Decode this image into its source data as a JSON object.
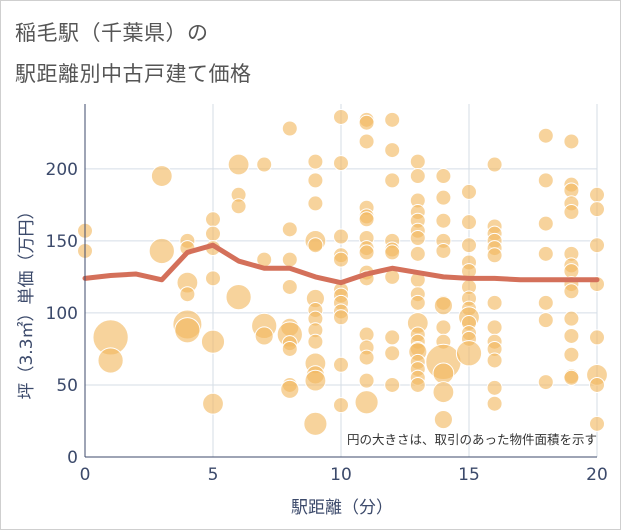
{
  "title_line_1": "稲毛駅（千葉県）の",
  "title_line_2": "駅距離別中古戸建て価格",
  "chart_data": {
    "type": "scatter",
    "xlabel": "駅距離（分）",
    "ylabel": "坪（3.3㎡）単価（万円）",
    "xlim": [
      0,
      20
    ],
    "ylim": [
      0,
      245
    ],
    "xticks": [
      0,
      5,
      10,
      15,
      20
    ],
    "yticks": [
      0,
      50,
      100,
      150,
      200
    ],
    "grid": true,
    "annotation": "円の大きさは、取引のあった物件面積を示す",
    "colors": {
      "bubble": "#f2b85f",
      "trend": "#d4705a",
      "grid": "#d5dde6"
    },
    "bubbles": [
      [
        0,
        157,
        1
      ],
      [
        0,
        143,
        1
      ],
      [
        1,
        83,
        6
      ],
      [
        1,
        67,
        3
      ],
      [
        3,
        195,
        2
      ],
      [
        3,
        143,
        3
      ],
      [
        4,
        150,
        1
      ],
      [
        4,
        145,
        1
      ],
      [
        4,
        121,
        2
      ],
      [
        4,
        113,
        1
      ],
      [
        4,
        92,
        4
      ],
      [
        4,
        88,
        3
      ],
      [
        5,
        165,
        1
      ],
      [
        5,
        155,
        1
      ],
      [
        5,
        145,
        1
      ],
      [
        5,
        124,
        1
      ],
      [
        5,
        80,
        2.5
      ],
      [
        5,
        37,
        2
      ],
      [
        6,
        203,
        2
      ],
      [
        6,
        182,
        1
      ],
      [
        6,
        174,
        1
      ],
      [
        6,
        111,
        3
      ],
      [
        7,
        203,
        1
      ],
      [
        7,
        137,
        1
      ],
      [
        7,
        91,
        3
      ],
      [
        7,
        84,
        1.5
      ],
      [
        8,
        228,
        1
      ],
      [
        8,
        158,
        1
      ],
      [
        8,
        137,
        1
      ],
      [
        8,
        118,
        1
      ],
      [
        8,
        90,
        1.5
      ],
      [
        8,
        85,
        3
      ],
      [
        8,
        79,
        1
      ],
      [
        8,
        75,
        1
      ],
      [
        8,
        50,
        1
      ],
      [
        8,
        47,
        1.5
      ],
      [
        9,
        205,
        1
      ],
      [
        9,
        192,
        1
      ],
      [
        9,
        176,
        1
      ],
      [
        9,
        150,
        2
      ],
      [
        9,
        147,
        1
      ],
      [
        9,
        110,
        1.5
      ],
      [
        9,
        102,
        1
      ],
      [
        9,
        96,
        1
      ],
      [
        9,
        88,
        1
      ],
      [
        9,
        80,
        1
      ],
      [
        9,
        65,
        2
      ],
      [
        9,
        57,
        1.5
      ],
      [
        9,
        53,
        2
      ],
      [
        9,
        23,
        2.5
      ],
      [
        10,
        236,
        1
      ],
      [
        10,
        204,
        1
      ],
      [
        10,
        153,
        1
      ],
      [
        10,
        140,
        1
      ],
      [
        10,
        137,
        1
      ],
      [
        10,
        116,
        1
      ],
      [
        10,
        112,
        1
      ],
      [
        10,
        107,
        1
      ],
      [
        10,
        101,
        1
      ],
      [
        10,
        97,
        1
      ],
      [
        10,
        64,
        1
      ],
      [
        10,
        36,
        1
      ],
      [
        11,
        234,
        1
      ],
      [
        11,
        232,
        1
      ],
      [
        11,
        219,
        1
      ],
      [
        11,
        173,
        1
      ],
      [
        11,
        167,
        1
      ],
      [
        11,
        165,
        1
      ],
      [
        11,
        152,
        1
      ],
      [
        11,
        145,
        1
      ],
      [
        11,
        142,
        1
      ],
      [
        11,
        128,
        1
      ],
      [
        11,
        124,
        1
      ],
      [
        11,
        85,
        1
      ],
      [
        11,
        76,
        1
      ],
      [
        11,
        69,
        1
      ],
      [
        11,
        53,
        1
      ],
      [
        11,
        38,
        2.5
      ],
      [
        12,
        234,
        1
      ],
      [
        12,
        213,
        1
      ],
      [
        12,
        192,
        1
      ],
      [
        12,
        150,
        1
      ],
      [
        12,
        144,
        1
      ],
      [
        12,
        142,
        1
      ],
      [
        12,
        125,
        1
      ],
      [
        12,
        83,
        1
      ],
      [
        12,
        72,
        1
      ],
      [
        12,
        50,
        1
      ],
      [
        13,
        205,
        1
      ],
      [
        13,
        195,
        1
      ],
      [
        13,
        178,
        1
      ],
      [
        13,
        170,
        1
      ],
      [
        13,
        164,
        1
      ],
      [
        13,
        157,
        1
      ],
      [
        13,
        152,
        1
      ],
      [
        13,
        141,
        1
      ],
      [
        13,
        123,
        1
      ],
      [
        13,
        113,
        1
      ],
      [
        13,
        107,
        1
      ],
      [
        13,
        93,
        2
      ],
      [
        13,
        85,
        1
      ],
      [
        13,
        80,
        1
      ],
      [
        13,
        75,
        1
      ],
      [
        13,
        73,
        1.5
      ],
      [
        13,
        66,
        1
      ],
      [
        13,
        61,
        1
      ],
      [
        13,
        55,
        1
      ],
      [
        13,
        50,
        1
      ],
      [
        14,
        195,
        1
      ],
      [
        14,
        180,
        1
      ],
      [
        14,
        164,
        1
      ],
      [
        14,
        150,
        1
      ],
      [
        14,
        143,
        1
      ],
      [
        14,
        107,
        1
      ],
      [
        14,
        105,
        1.5
      ],
      [
        14,
        90,
        1
      ],
      [
        14,
        80,
        1
      ],
      [
        14,
        66,
        6
      ],
      [
        14,
        58,
        2
      ],
      [
        14,
        45,
        2
      ],
      [
        14,
        26,
        1.5
      ],
      [
        15,
        184,
        1
      ],
      [
        15,
        163,
        1
      ],
      [
        15,
        147,
        1
      ],
      [
        15,
        135,
        1
      ],
      [
        15,
        129,
        1
      ],
      [
        15,
        118,
        1
      ],
      [
        15,
        110,
        1
      ],
      [
        15,
        103,
        1
      ],
      [
        15,
        97,
        2
      ],
      [
        15,
        93,
        1
      ],
      [
        15,
        86,
        1
      ],
      [
        15,
        82,
        1
      ],
      [
        15,
        72,
        3
      ],
      [
        16,
        203,
        1
      ],
      [
        16,
        160,
        1
      ],
      [
        16,
        155,
        1
      ],
      [
        16,
        150,
        1
      ],
      [
        16,
        145,
        1
      ],
      [
        16,
        140,
        1
      ],
      [
        16,
        107,
        1
      ],
      [
        16,
        90,
        1
      ],
      [
        16,
        80,
        1
      ],
      [
        16,
        75,
        1
      ],
      [
        16,
        67,
        1
      ],
      [
        16,
        48,
        1
      ],
      [
        16,
        37,
        1
      ],
      [
        18,
        223,
        1
      ],
      [
        18,
        192,
        1
      ],
      [
        18,
        162,
        1
      ],
      [
        18,
        141,
        1
      ],
      [
        18,
        107,
        1
      ],
      [
        18,
        95,
        1
      ],
      [
        18,
        52,
        1
      ],
      [
        19,
        219,
        1
      ],
      [
        19,
        189,
        1
      ],
      [
        19,
        185,
        1
      ],
      [
        19,
        176,
        1
      ],
      [
        19,
        170,
        1
      ],
      [
        19,
        141,
        1
      ],
      [
        19,
        133,
        1
      ],
      [
        19,
        129,
        1
      ],
      [
        19,
        120,
        1
      ],
      [
        19,
        115,
        1
      ],
      [
        19,
        96,
        1
      ],
      [
        19,
        84,
        1
      ],
      [
        19,
        71,
        1
      ],
      [
        19,
        56,
        1
      ],
      [
        19,
        55,
        1
      ],
      [
        20,
        182,
        1
      ],
      [
        20,
        172,
        1
      ],
      [
        20,
        147,
        1
      ],
      [
        20,
        120,
        1
      ],
      [
        20,
        83,
        1
      ],
      [
        20,
        57,
        2
      ],
      [
        20,
        50,
        1
      ],
      [
        20,
        23,
        1
      ]
    ],
    "trend": {
      "x": [
        0,
        1,
        2,
        3,
        4,
        5,
        6,
        7,
        8,
        9,
        10,
        11,
        12,
        13,
        14,
        15,
        16,
        17,
        18,
        19,
        20
      ],
      "y": [
        124,
        126,
        127,
        123,
        142,
        147,
        136,
        131,
        131,
        125,
        121,
        127,
        131,
        128,
        125,
        124,
        124,
        123,
        123,
        123,
        123
      ]
    }
  }
}
